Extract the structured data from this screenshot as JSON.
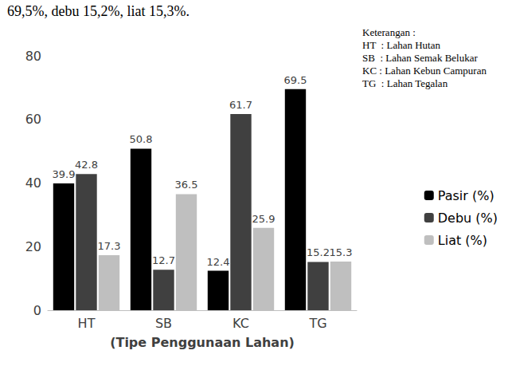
{
  "chart_data": {
    "type": "bar",
    "title": "69,5%, debu 15,2%, liat 15,3%.",
    "x_label": "(Tipe Penggunaan Lahan)",
    "categories": [
      "HT",
      "SB",
      "KC",
      "TG"
    ],
    "series": [
      {
        "name": "Pasir (%)",
        "color": "#000000",
        "values": [
          39.9,
          50.8,
          12.4,
          69.5
        ]
      },
      {
        "name": "Debu (%)",
        "color": "#404040",
        "values": [
          42.8,
          12.7,
          61.7,
          15.2
        ]
      },
      {
        "name": "Liat (%)",
        "color": "#bfbfbf",
        "values": [
          17.3,
          36.5,
          25.9,
          15.3
        ]
      }
    ],
    "ylim": [
      0,
      80
    ],
    "yticks": [
      0,
      20,
      40,
      60,
      80
    ],
    "grid": false,
    "legend": "right",
    "data_labels": true,
    "annotations": [
      "Keterangan :",
      "HT  : Lahan Hutan",
      "SB  : Lahan Semak Belukar",
      "KC : Lahan Kebun Campuran",
      "TG  : Lahan Tegalan"
    ]
  }
}
